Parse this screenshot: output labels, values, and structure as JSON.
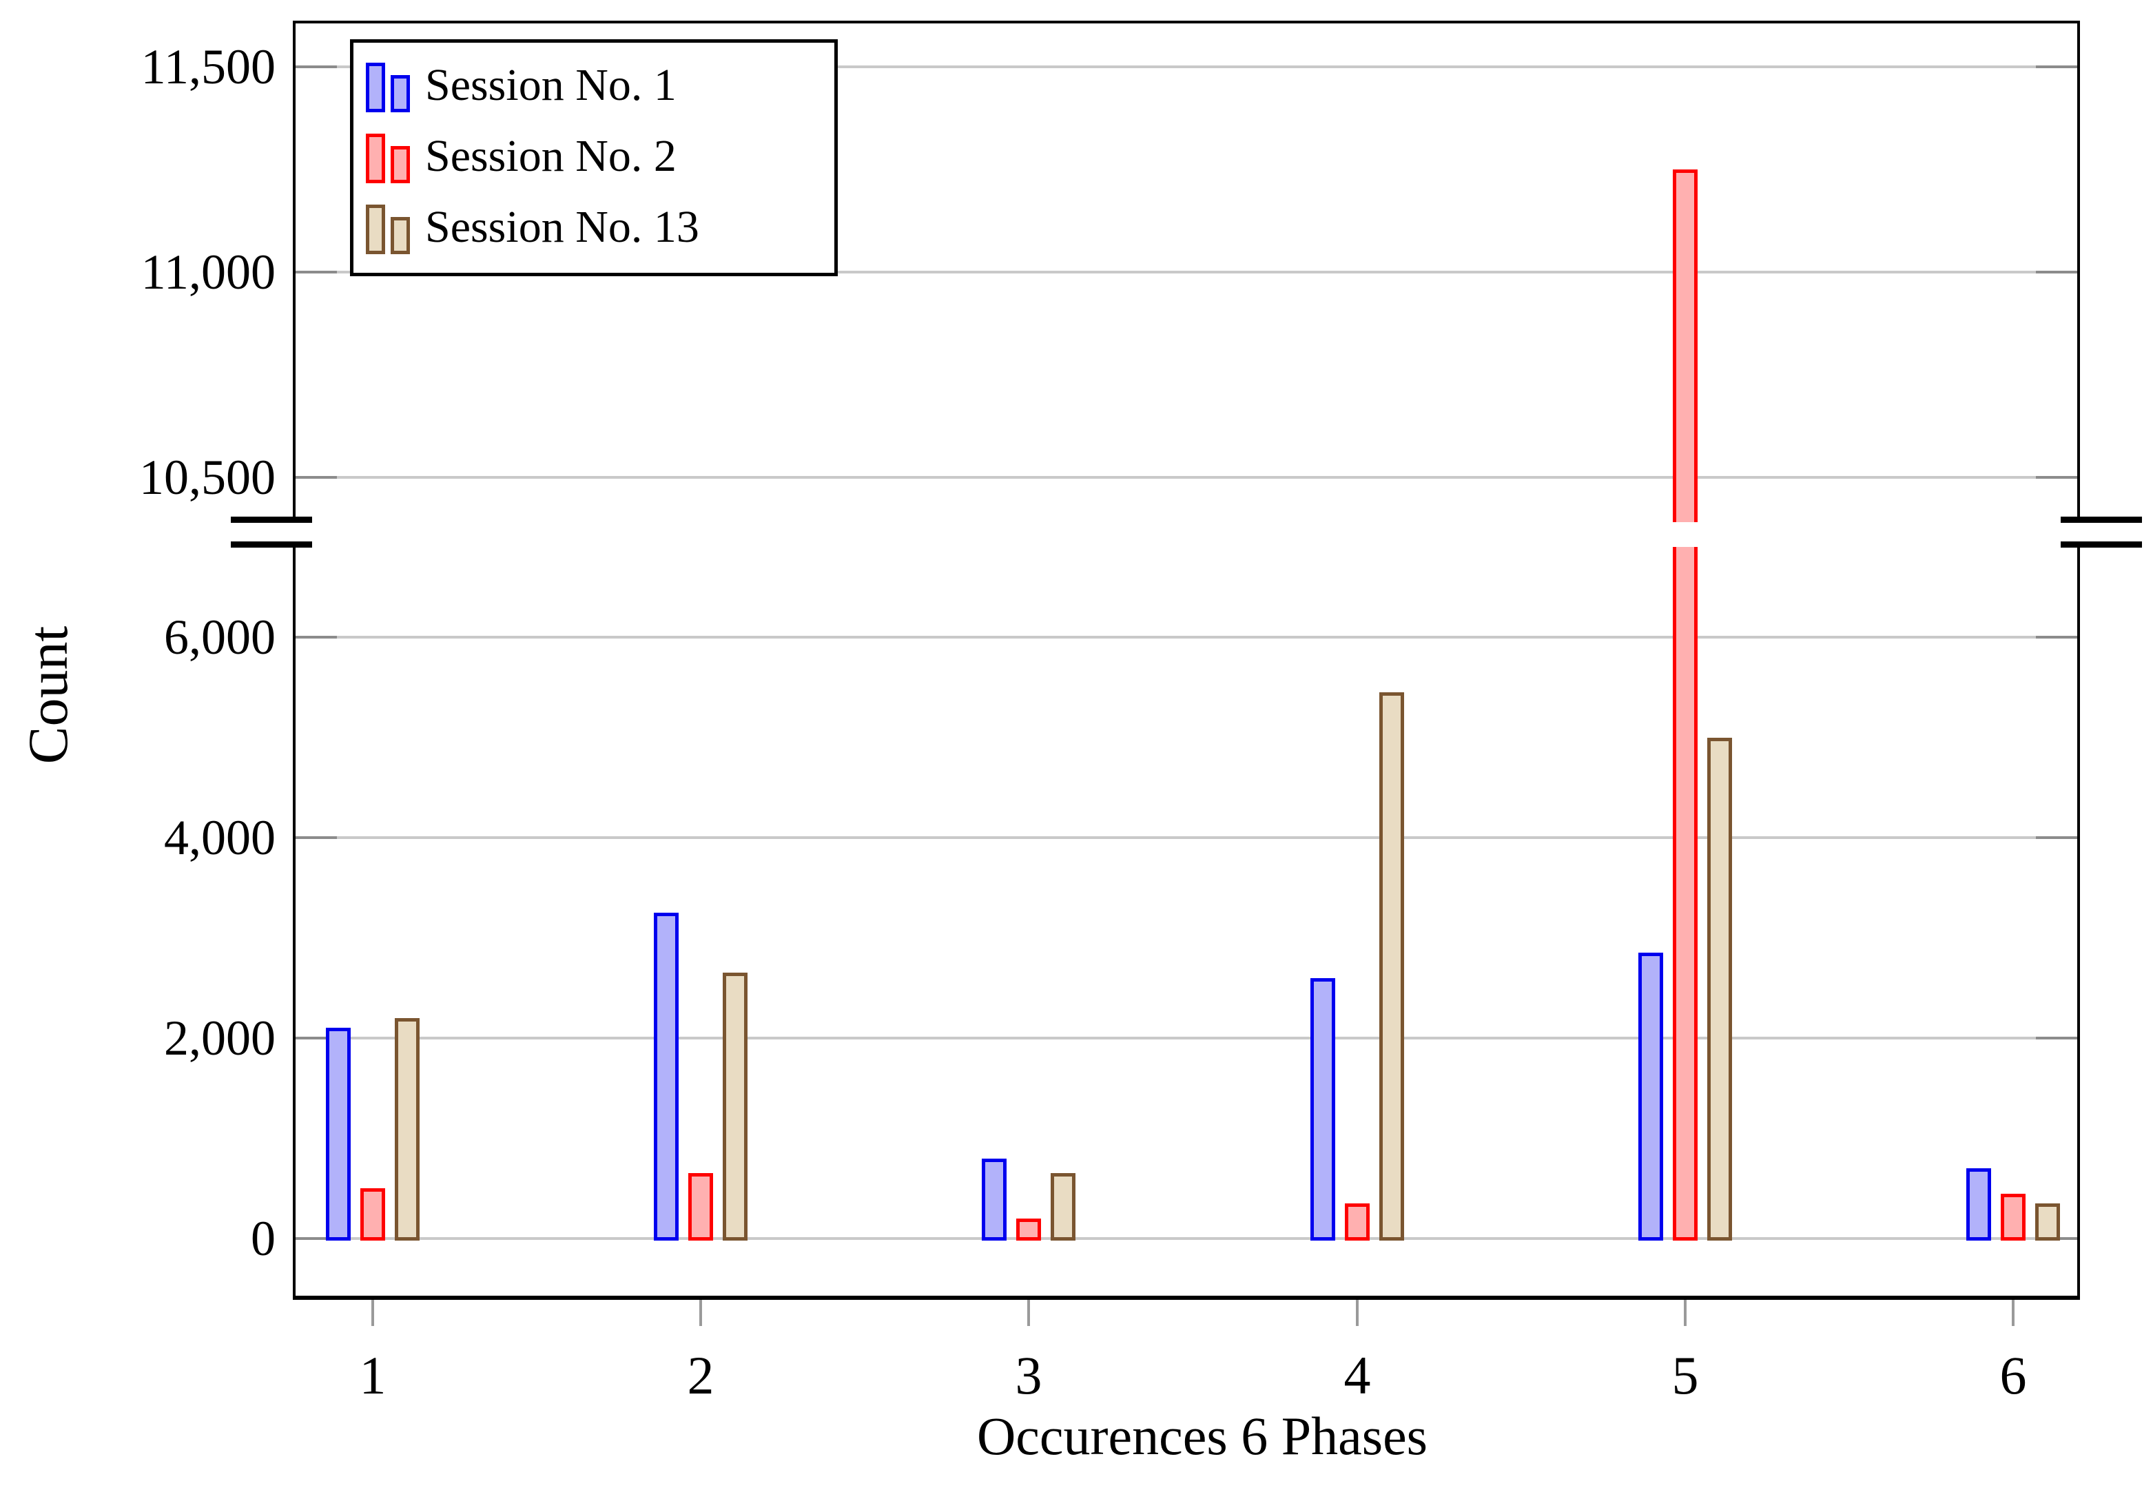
{
  "chart_data": {
    "type": "bar",
    "title": "",
    "xlabel": "Occurences 6 Phases",
    "ylabel": "Count",
    "categories": [
      "1",
      "2",
      "3",
      "4",
      "5",
      "6"
    ],
    "series": [
      {
        "name": "Session No. 1",
        "values": [
          2100,
          3250,
          800,
          2600,
          2850,
          700
        ],
        "border_color": "#0000ee",
        "fill_color": "#b2b2fa"
      },
      {
        "name": "Session No. 2",
        "values": [
          500,
          650,
          200,
          350,
          11250,
          450
        ],
        "border_color": "#fe0000",
        "fill_color": "#ffb0b0"
      },
      {
        "name": "Session No. 13",
        "values": [
          2200,
          2650,
          650,
          5450,
          5000,
          350
        ],
        "border_color": "#7a5530",
        "fill_color": "#e9dcc3"
      }
    ],
    "y_axis": {
      "label": "Count",
      "axis_break": true,
      "lower_range": [
        0,
        6900
      ],
      "upper_range": [
        10300,
        11600
      ],
      "lower_ticks": [
        {
          "value": 0,
          "label": "0"
        },
        {
          "value": 2000,
          "label": "2,000"
        },
        {
          "value": 4000,
          "label": "4,000"
        },
        {
          "value": 6000,
          "label": "6,000"
        }
      ],
      "upper_ticks": [
        {
          "value": 10500,
          "label": "10,500"
        },
        {
          "value": 11000,
          "label": "11,000"
        },
        {
          "value": 11500,
          "label": "11,500"
        }
      ]
    },
    "x_axis": {
      "label": "Occurences 6 Phases",
      "tick_labels": [
        "1",
        "2",
        "3",
        "4",
        "5",
        "6"
      ]
    },
    "legend": {
      "position": "top-left",
      "entries": [
        "Session No. 1",
        "Session No. 2",
        "Session No. 13"
      ]
    },
    "grid": "horizontal",
    "colors": {
      "gridline": "#c9c9c9",
      "grid_stub": "#8c8c8c",
      "axis": "#000000",
      "background": "#ffffff"
    }
  }
}
